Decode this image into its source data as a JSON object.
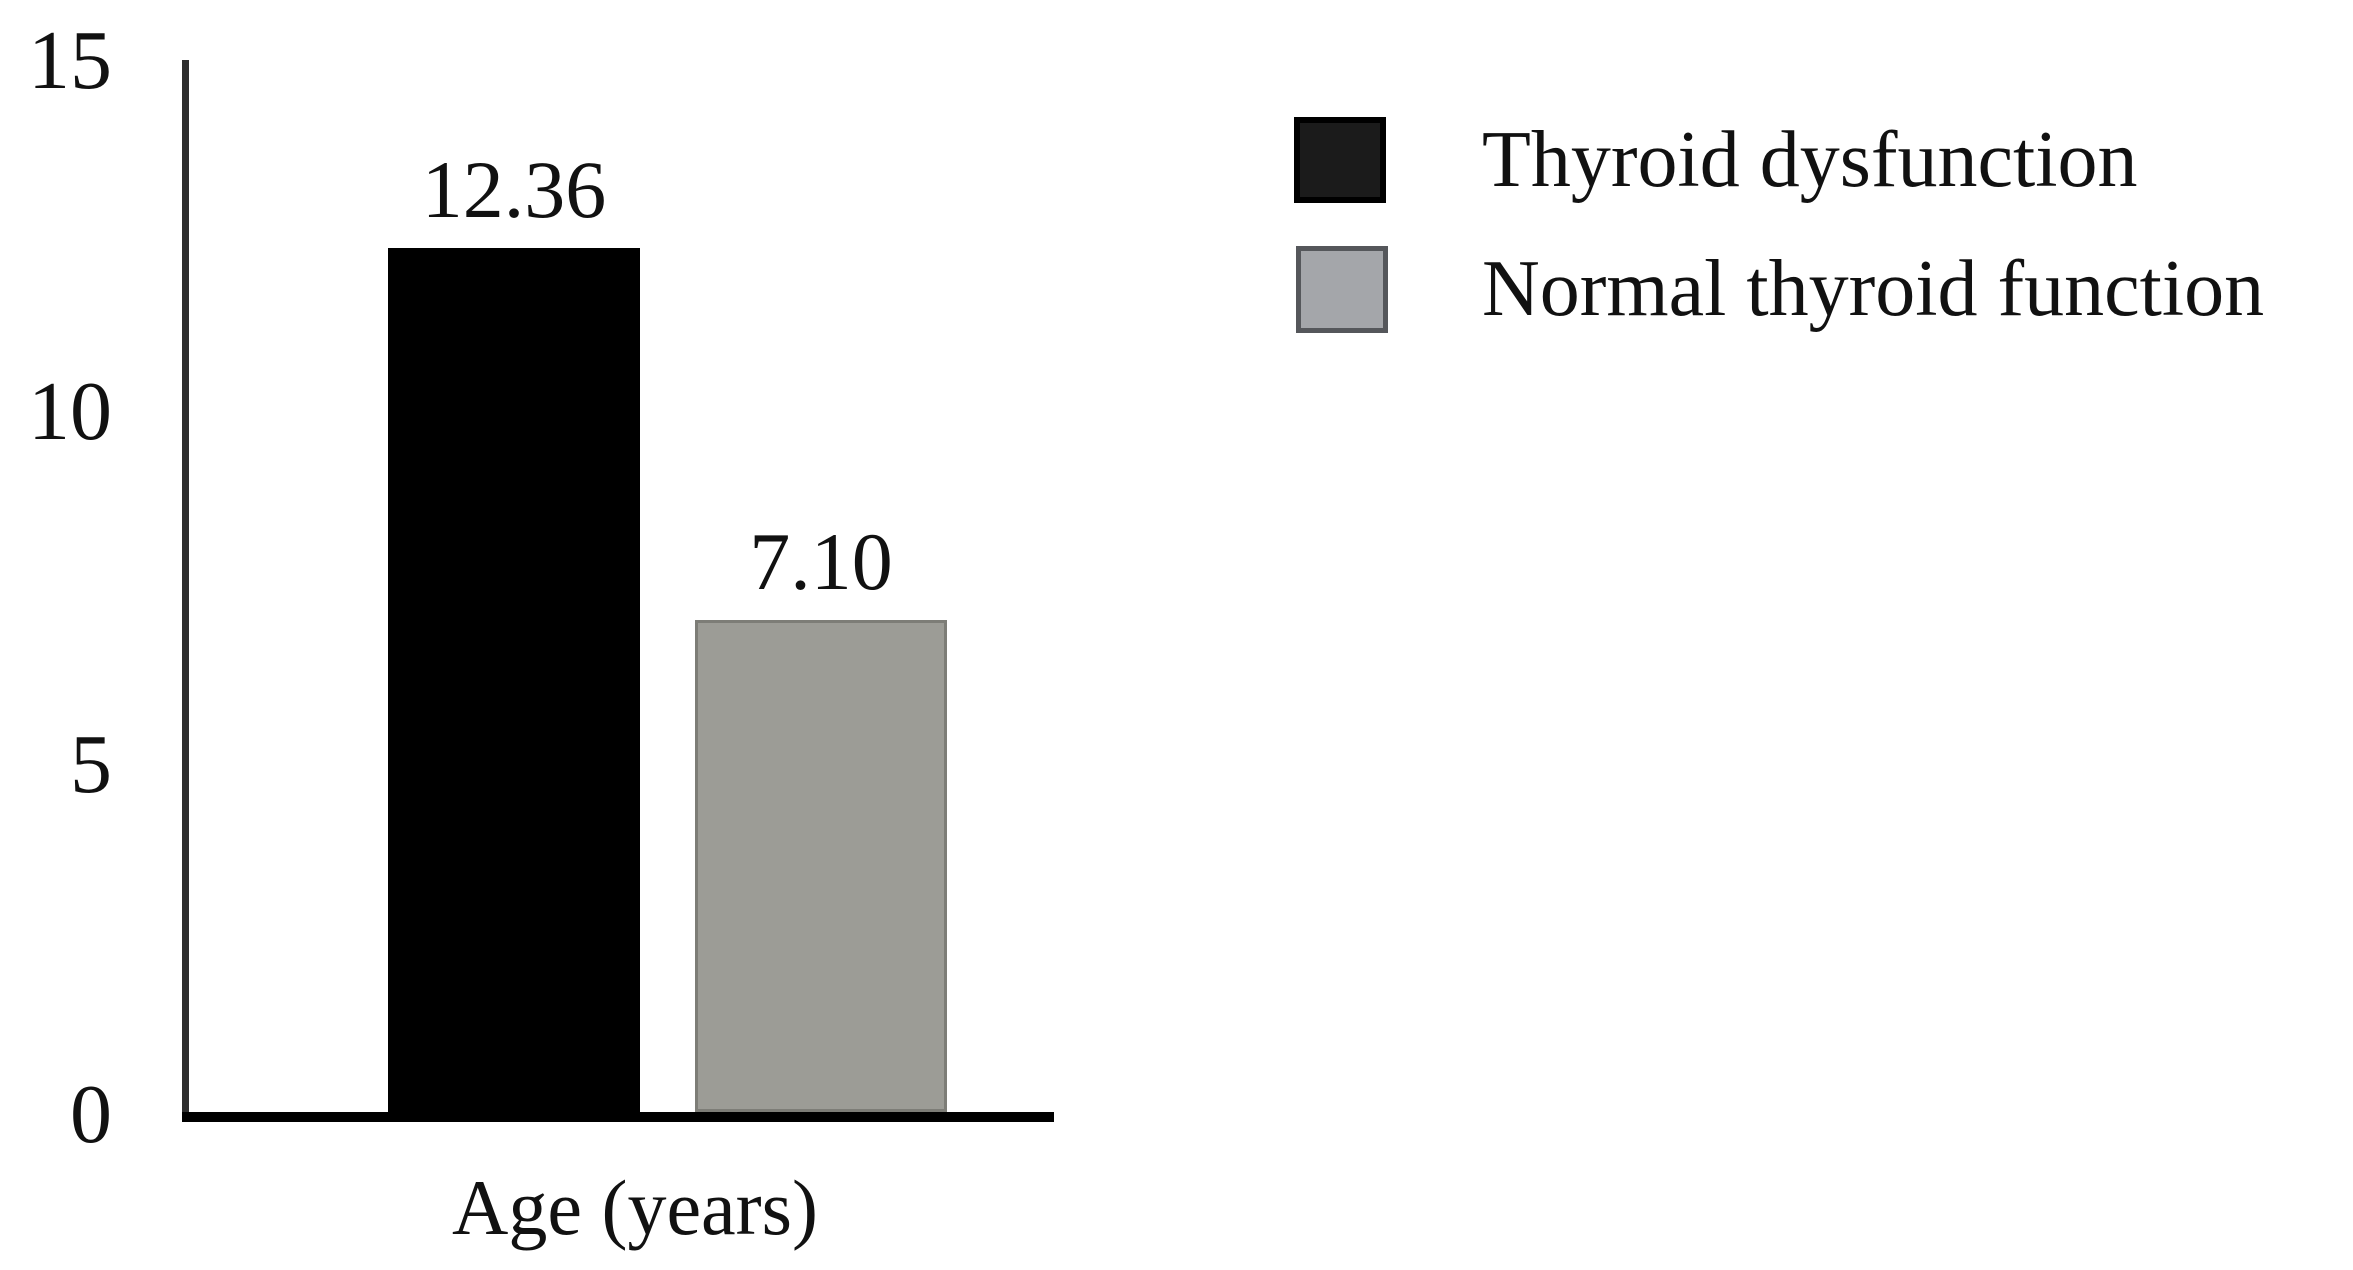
{
  "chart_data": {
    "type": "bar",
    "title": "",
    "xlabel": "Age (years)",
    "ylabel": "",
    "ylim": [
      0,
      15
    ],
    "yticks": [
      0,
      5,
      10,
      15
    ],
    "grid": false,
    "legend_position": "top-right",
    "categories": [
      "Age (years)"
    ],
    "series": [
      {
        "name": "Thyroid dysfunction",
        "values": [
          12.36
        ],
        "color": "#000000"
      },
      {
        "name": "Normal thyroid function",
        "values": [
          7.1
        ],
        "color": "#9c9c96"
      }
    ]
  },
  "y_axis": {
    "ticks": [
      {
        "label": "15"
      },
      {
        "label": "10"
      },
      {
        "label": "5"
      },
      {
        "label": "0"
      }
    ]
  },
  "x_axis": {
    "label": "Age (years)"
  },
  "bars": [
    {
      "series": "Thyroid dysfunction",
      "value_label": "12.36"
    },
    {
      "series": "Normal thyroid function",
      "value_label": "7.10"
    }
  ],
  "legend": {
    "items": [
      {
        "label": "Thyroid dysfunction",
        "swatch_color": "#1b1b1b",
        "swatch_border": "#000000"
      },
      {
        "label": "Normal thyroid function",
        "swatch_color": "#a4a6aa",
        "swatch_border": "#55575b"
      }
    ]
  },
  "colors": {
    "bar_black": "#000000",
    "bar_gray": "#9c9c96",
    "axis": "#2e2e2e",
    "text": "#111111",
    "background": "#ffffff"
  }
}
